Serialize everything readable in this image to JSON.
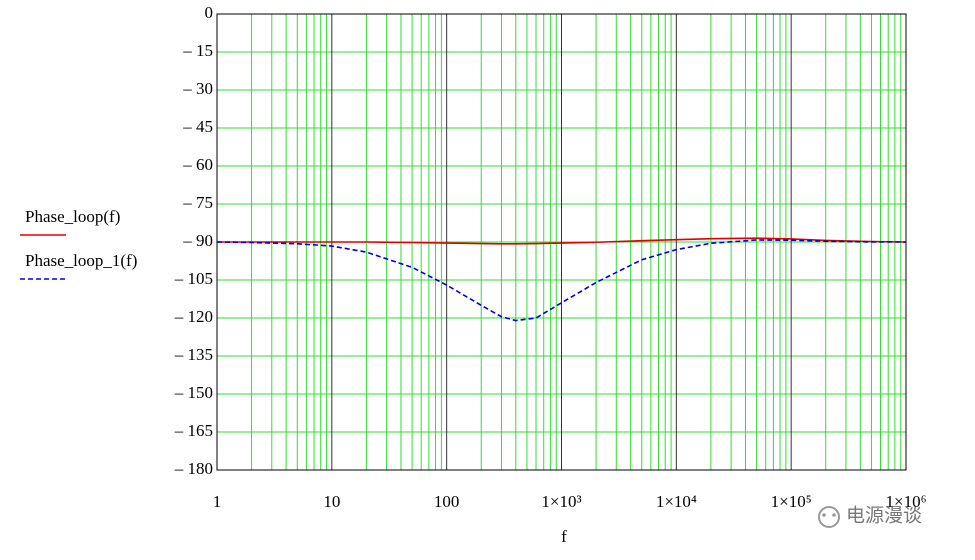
{
  "chart_data": {
    "type": "line",
    "x_label": "f",
    "x": [
      1,
      2,
      5,
      10,
      20,
      50,
      100,
      200,
      300,
      400,
      600,
      1000,
      2000,
      5000,
      10000,
      20000,
      50000,
      100000,
      200000,
      500000,
      1000000
    ],
    "series": [
      {
        "name": "Phase_loop(f)",
        "color": "#e00000",
        "dash": false,
        "values": [
          -90,
          -90,
          -90,
          -90,
          -90,
          -90.2,
          -90.4,
          -90.6,
          -90.7,
          -90.7,
          -90.6,
          -90.4,
          -90.1,
          -89.5,
          -89.1,
          -88.7,
          -88.5,
          -88.8,
          -89.4,
          -89.8,
          -90
        ]
      },
      {
        "name": "Phase_loop_1(f)",
        "color": "#0000e0",
        "dash": true,
        "values": [
          -90,
          -90.2,
          -90.7,
          -91.6,
          -94,
          -100,
          -107,
          -115,
          -119.5,
          -121,
          -120,
          -114,
          -106,
          -97,
          -93,
          -90.5,
          -89.2,
          -89.3,
          -89.7,
          -90,
          -90
        ]
      }
    ],
    "xlim": [
      1,
      1000000
    ],
    "log_x": true,
    "xticks": [
      1,
      10,
      100,
      {
        "value": 1000,
        "label": "1×10³"
      },
      {
        "value": 10000,
        "label": "1×10⁴"
      },
      {
        "value": 100000,
        "label": "1×10⁵"
      },
      {
        "value": 1000000,
        "label": "1×10⁶"
      }
    ],
    "ylim": [
      -180,
      0
    ],
    "yticks": [
      {
        "value": -180,
        "label": "– 180"
      },
      {
        "value": -165,
        "label": "– 165"
      },
      {
        "value": -150,
        "label": "– 150"
      },
      {
        "value": -135,
        "label": "– 135"
      },
      {
        "value": -120,
        "label": "– 120"
      },
      {
        "value": -105,
        "label": "– 105"
      },
      {
        "value": -90,
        "label": "– 90"
      },
      {
        "value": -75,
        "label": "– 75"
      },
      {
        "value": -60,
        "label": "– 60"
      },
      {
        "value": -45,
        "label": "– 45"
      },
      {
        "value": -30,
        "label": "– 30"
      },
      {
        "value": -15,
        "label": "– 15"
      },
      0
    ],
    "grid": true,
    "grid_color": "#33dd33",
    "major_grid_color": "#333333",
    "legend": "left",
    "watermark": "电源漫谈"
  }
}
